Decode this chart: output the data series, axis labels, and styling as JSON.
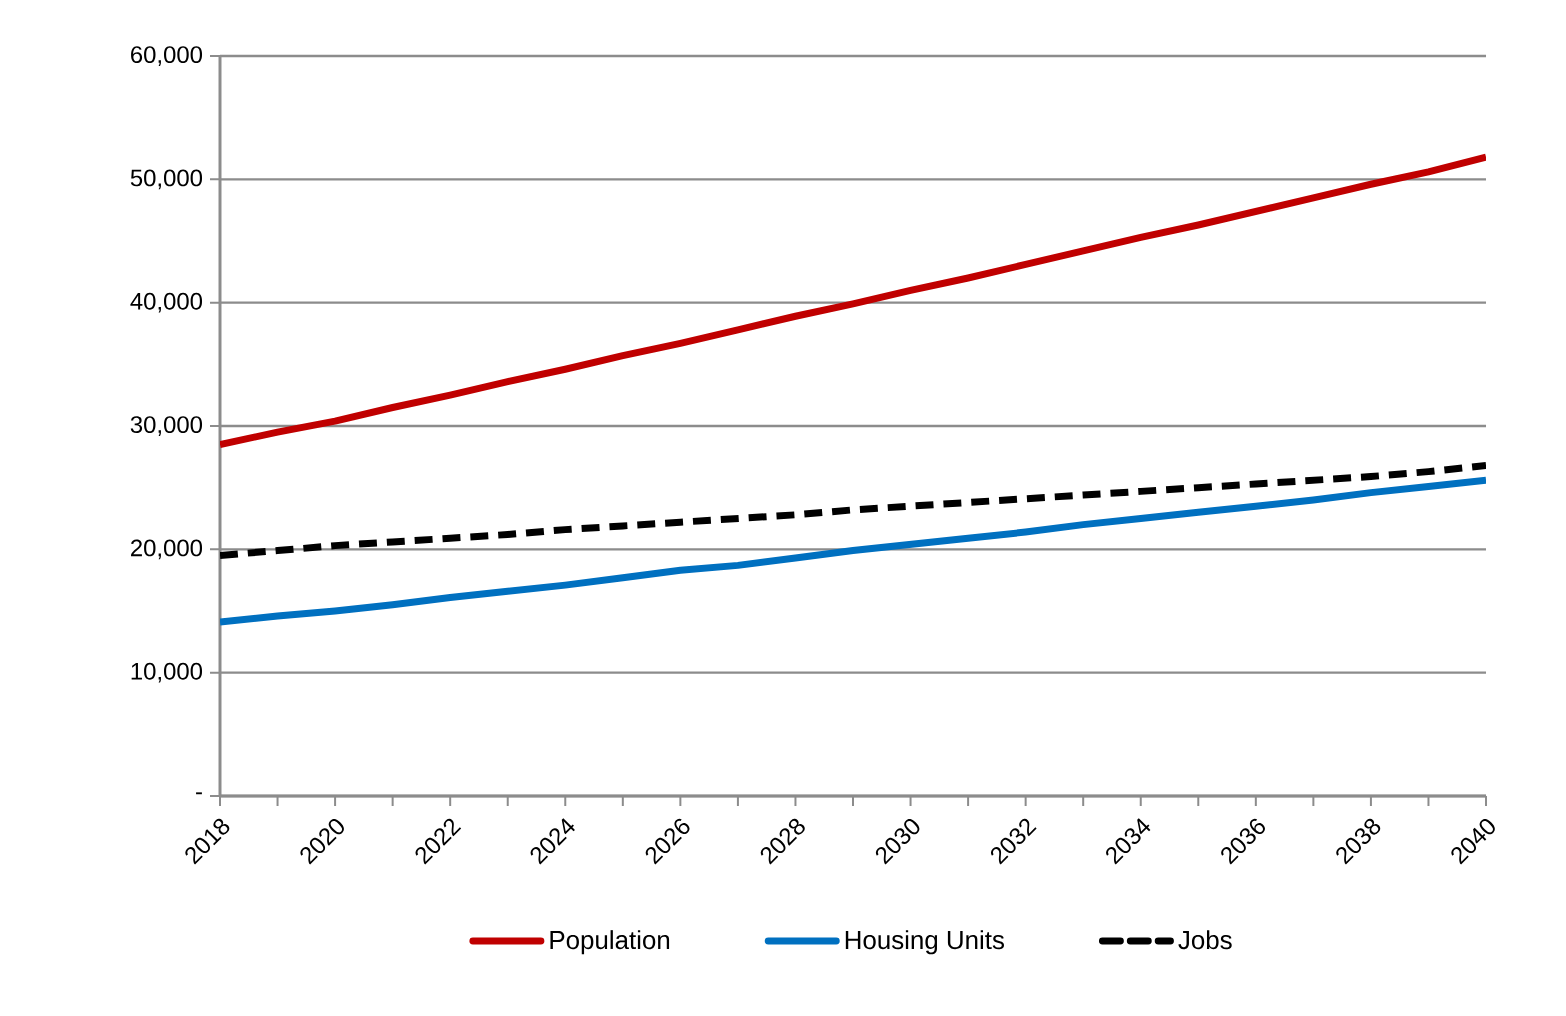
{
  "chart_data": {
    "type": "line",
    "x": [
      2018,
      2019,
      2020,
      2021,
      2022,
      2023,
      2024,
      2025,
      2026,
      2027,
      2028,
      2029,
      2030,
      2031,
      2032,
      2033,
      2034,
      2035,
      2036,
      2037,
      2038,
      2039,
      2040
    ],
    "series": [
      {
        "name": "Population",
        "color": "#c00000",
        "line_style": "solid",
        "values": [
          28500,
          29500,
          30400,
          31500,
          32500,
          33600,
          34600,
          35700,
          36700,
          37800,
          38900,
          39900,
          41000,
          42000,
          43100,
          44200,
          45300,
          46300,
          47400,
          48500,
          49600,
          50600,
          51800
        ]
      },
      {
        "name": "Housing Units",
        "color": "#0070c0",
        "line_style": "solid",
        "values": [
          14100,
          14600,
          15000,
          15500,
          16100,
          16600,
          17100,
          17700,
          18300,
          18700,
          19300,
          19900,
          20400,
          20900,
          21400,
          22000,
          22500,
          23000,
          23500,
          24000,
          24600,
          25100,
          25600
        ]
      },
      {
        "name": "Jobs",
        "color": "#000000",
        "line_style": "dashed",
        "values": [
          19500,
          19900,
          20300,
          20600,
          20900,
          21200,
          21600,
          21900,
          22200,
          22500,
          22800,
          23200,
          23500,
          23800,
          24100,
          24400,
          24700,
          25000,
          25300,
          25600,
          25900,
          26300,
          26800
        ]
      }
    ],
    "xlim": [
      2018,
      2040
    ],
    "xticks": [
      2018,
      {
        "value": 2019,
        "label": null
      },
      2020,
      {
        "value": 2021,
        "label": null
      },
      2022,
      {
        "value": 2023,
        "label": null
      },
      2024,
      {
        "value": 2025,
        "label": null
      },
      2026,
      {
        "value": 2027,
        "label": null
      },
      2028,
      {
        "value": 2029,
        "label": null
      },
      2030,
      {
        "value": 2031,
        "label": null
      },
      2032,
      {
        "value": 2033,
        "label": null
      },
      2034,
      {
        "value": 2035,
        "label": null
      },
      2036,
      {
        "value": 2037,
        "label": null
      },
      2038,
      {
        "value": 2039,
        "label": null
      },
      2040
    ],
    "ylim": [
      0,
      60000
    ],
    "yticks": [
      {
        "value": 0,
        "label": "-"
      },
      {
        "value": 10000,
        "label": "10,000"
      },
      {
        "value": 20000,
        "label": "20,000"
      },
      {
        "value": 30000,
        "label": "30,000"
      },
      {
        "value": 40000,
        "label": "40,000"
      },
      {
        "value": 50000,
        "label": "50,000"
      },
      {
        "value": 60000,
        "label": "60,000"
      }
    ],
    "grid": "y",
    "legend": "bottom",
    "marker": "none"
  }
}
